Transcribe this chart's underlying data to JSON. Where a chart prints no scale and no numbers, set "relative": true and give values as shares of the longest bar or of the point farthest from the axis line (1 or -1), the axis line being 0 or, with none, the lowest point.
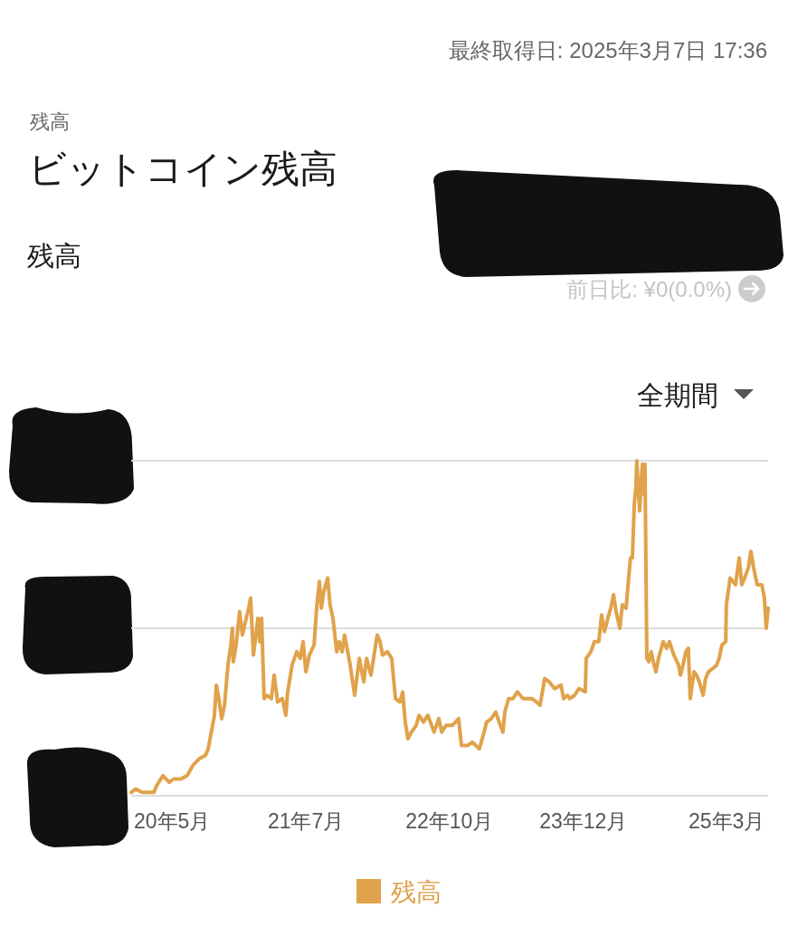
{
  "chart_data": {
    "type": "line",
    "title": "ビットコイン残高",
    "subtitle": "残高",
    "annotations": [
      "最終取得日: 2025年3月7日 17:36",
      "残高",
      "前日比: ¥0(0.0%)",
      "全期間"
    ],
    "relative": true,
    "legend": "bottom",
    "line_style": "solid",
    "xlim": [
      "2019-12-23",
      "2025-07-11"
    ],
    "xticks": [
      {
        "value": "2020-05",
        "label": "20年5月"
      },
      {
        "value": "2021-07",
        "label": "21年7月"
      },
      {
        "value": "2022-10",
        "label": "22年10月"
      },
      {
        "value": "2023-12",
        "label": "23年12月"
      },
      {
        "value": "2025-03",
        "label": "25年3月"
      }
    ],
    "ref_lines": [
      {
        "axis": "y",
        "value": 0.5,
        "color": "#dddddd"
      },
      {
        "axis": "y",
        "value": 1,
        "color": "#dddddd"
      }
    ],
    "x": [
      "2019-12-23",
      "2020-01-06",
      "2020-01-27",
      "2020-03-04",
      "2020-03-13",
      "2020-04-02",
      "2020-04-22",
      "2020-05-06",
      "2020-05-29",
      "2020-06-18",
      "2020-07-06",
      "2020-07-26",
      "2020-08-15",
      "2020-08-24",
      "2020-09-01",
      "2020-09-13",
      "2020-09-19",
      "2020-09-27",
      "2020-10-06",
      "2020-10-15",
      "2020-10-26",
      "2020-11-04",
      "2020-11-09",
      "2020-11-12",
      "2020-11-21",
      "2020-12-02",
      "2020-12-11",
      "2020-12-23",
      "2020-12-31",
      "2021-01-06",
      "2021-01-15",
      "2021-01-23",
      "2021-01-29",
      "2021-02-04",
      "2021-02-10",
      "2021-02-18",
      "2021-02-27",
      "2021-03-13",
      "2021-03-22",
      "2021-04-02",
      "2021-04-17",
      "2021-04-28",
      "2021-05-04",
      "2021-05-18",
      "2021-06-02",
      "2021-06-13",
      "2021-06-22",
      "2021-07-01",
      "2021-07-12",
      "2021-07-27",
      "2021-08-04",
      "2021-08-13",
      "2021-08-19",
      "2021-08-27",
      "2021-09-08",
      "2021-09-16",
      "2021-09-25",
      "2021-10-07",
      "2021-10-15",
      "2021-10-24",
      "2021-11-01",
      "2021-11-19",
      "2021-12-03",
      "2021-12-18",
      "2022-01-01",
      "2022-01-10",
      "2022-01-24",
      "2022-02-13",
      "2022-02-22",
      "2022-03-02",
      "2022-03-17",
      "2022-03-31",
      "2022-04-12",
      "2022-04-26",
      "2022-05-05",
      "2022-05-13",
      "2022-05-22",
      "2022-06-02",
      "2022-06-17",
      "2022-06-26",
      "2022-07-10",
      "2022-07-24",
      "2022-08-05",
      "2022-08-13",
      "2022-08-28",
      "2022-09-06",
      "2022-09-20",
      "2022-10-10",
      "2022-10-30",
      "2022-11-08",
      "2022-11-28",
      "2022-12-12",
      "2023-01-04",
      "2023-01-19",
      "2023-01-27",
      "2023-02-11",
      "2023-02-25",
      "2023-03-12",
      "2023-03-20",
      "2023-03-26",
      "2023-04-07",
      "2023-04-21",
      "2023-05-05",
      "2023-05-23",
      "2023-06-06",
      "2023-06-20",
      "2023-07-05",
      "2023-07-16",
      "2023-07-31",
      "2023-08-14",
      "2023-08-31",
      "2023-09-21",
      "2023-09-29",
      "2023-10-11",
      "2023-10-19",
      "2023-11-03",
      "2023-11-17",
      "2023-12-07",
      "2023-12-10",
      "2023-12-25",
      "2024-01-05",
      "2024-01-19",
      "2024-01-28",
      "2024-02-06",
      "2024-02-17",
      "2024-02-26",
      "2024-03-06",
      "2024-03-14",
      "2024-03-26",
      "2024-04-03",
      "2024-04-15",
      "2024-04-23",
      "2024-04-29",
      "2024-05-05",
      "2024-05-11",
      "2024-05-16",
      "2024-05-19",
      "2024-05-28",
      "2024-06-03",
      "2024-06-06",
      "2024-06-11",
      "2024-06-14",
      "2024-06-20",
      "2024-06-26",
      "2024-07-04",
      "2024-07-13",
      "2024-07-19",
      "2024-07-27",
      "2024-08-11",
      "2024-08-22",
      "2024-08-31",
      "2024-09-14",
      "2024-09-29",
      "2024-10-05",
      "2024-10-13",
      "2024-10-22",
      "2024-10-30",
      "2024-11-05",
      "2024-11-17",
      "2024-11-25",
      "2024-12-04",
      "2024-12-16",
      "2024-12-24",
      "2025-01-02",
      "2025-01-16",
      "2025-01-28",
      "2025-02-05",
      "2025-02-14",
      "2025-02-26",
      "2025-02-28",
      "2025-03-12",
      "2025-03-21",
      "2025-03-29",
      "2025-04-10",
      "2025-04-18",
      "2025-04-27",
      "2025-05-09",
      "2025-05-17",
      "2025-05-26",
      "2025-06-06",
      "2025-06-21",
      "2025-06-29",
      "2025-07-05",
      "2025-07-11"
    ],
    "series": [
      {
        "name": "残高",
        "color": "#e0a24b",
        "values": [
          0.01,
          0.02,
          0.01,
          0.01,
          0.03,
          0.06,
          0.04,
          0.05,
          0.05,
          0.06,
          0.09,
          0.11,
          0.12,
          0.14,
          0.18,
          0.24,
          0.33,
          0.29,
          0.23,
          0.27,
          0.39,
          0.45,
          0.5,
          0.4,
          0.45,
          0.55,
          0.48,
          0.53,
          0.56,
          0.59,
          0.42,
          0.48,
          0.53,
          0.46,
          0.53,
          0.29,
          0.3,
          0.29,
          0.36,
          0.28,
          0.29,
          0.24,
          0.31,
          0.39,
          0.43,
          0.41,
          0.46,
          0.37,
          0.42,
          0.45,
          0.56,
          0.64,
          0.56,
          0.61,
          0.65,
          0.57,
          0.53,
          0.43,
          0.46,
          0.43,
          0.48,
          0.39,
          0.3,
          0.41,
          0.34,
          0.41,
          0.36,
          0.48,
          0.46,
          0.42,
          0.43,
          0.41,
          0.29,
          0.28,
          0.31,
          0.22,
          0.17,
          0.19,
          0.21,
          0.24,
          0.22,
          0.24,
          0.21,
          0.19,
          0.23,
          0.19,
          0.21,
          0.21,
          0.23,
          0.15,
          0.15,
          0.16,
          0.14,
          0.19,
          0.22,
          0.23,
          0.25,
          0.21,
          0.19,
          0.25,
          0.29,
          0.29,
          0.31,
          0.29,
          0.29,
          0.29,
          0.28,
          0.27,
          0.35,
          0.34,
          0.32,
          0.33,
          0.29,
          0.3,
          0.29,
          0.3,
          0.32,
          0.31,
          0.41,
          0.43,
          0.46,
          0.46,
          0.54,
          0.49,
          0.53,
          0.56,
          0.6,
          0.55,
          0.5,
          0.57,
          0.56,
          0.65,
          0.71,
          0.71,
          0.87,
          0.92,
          1.0,
          0.85,
          0.95,
          0.99,
          0.9,
          0.99,
          0.41,
          0.4,
          0.43,
          0.39,
          0.37,
          0.41,
          0.46,
          0.44,
          0.46,
          0.42,
          0.39,
          0.36,
          0.39,
          0.43,
          0.44,
          0.29,
          0.37,
          0.36,
          0.34,
          0.3,
          0.35,
          0.37,
          0.38,
          0.39,
          0.41,
          0.45,
          0.46,
          0.57,
          0.65,
          0.64,
          0.63,
          0.71,
          0.63,
          0.65,
          0.68,
          0.73,
          0.68,
          0.63,
          0.63,
          0.59,
          0.5,
          0.56
        ]
      }
    ]
  }
}
